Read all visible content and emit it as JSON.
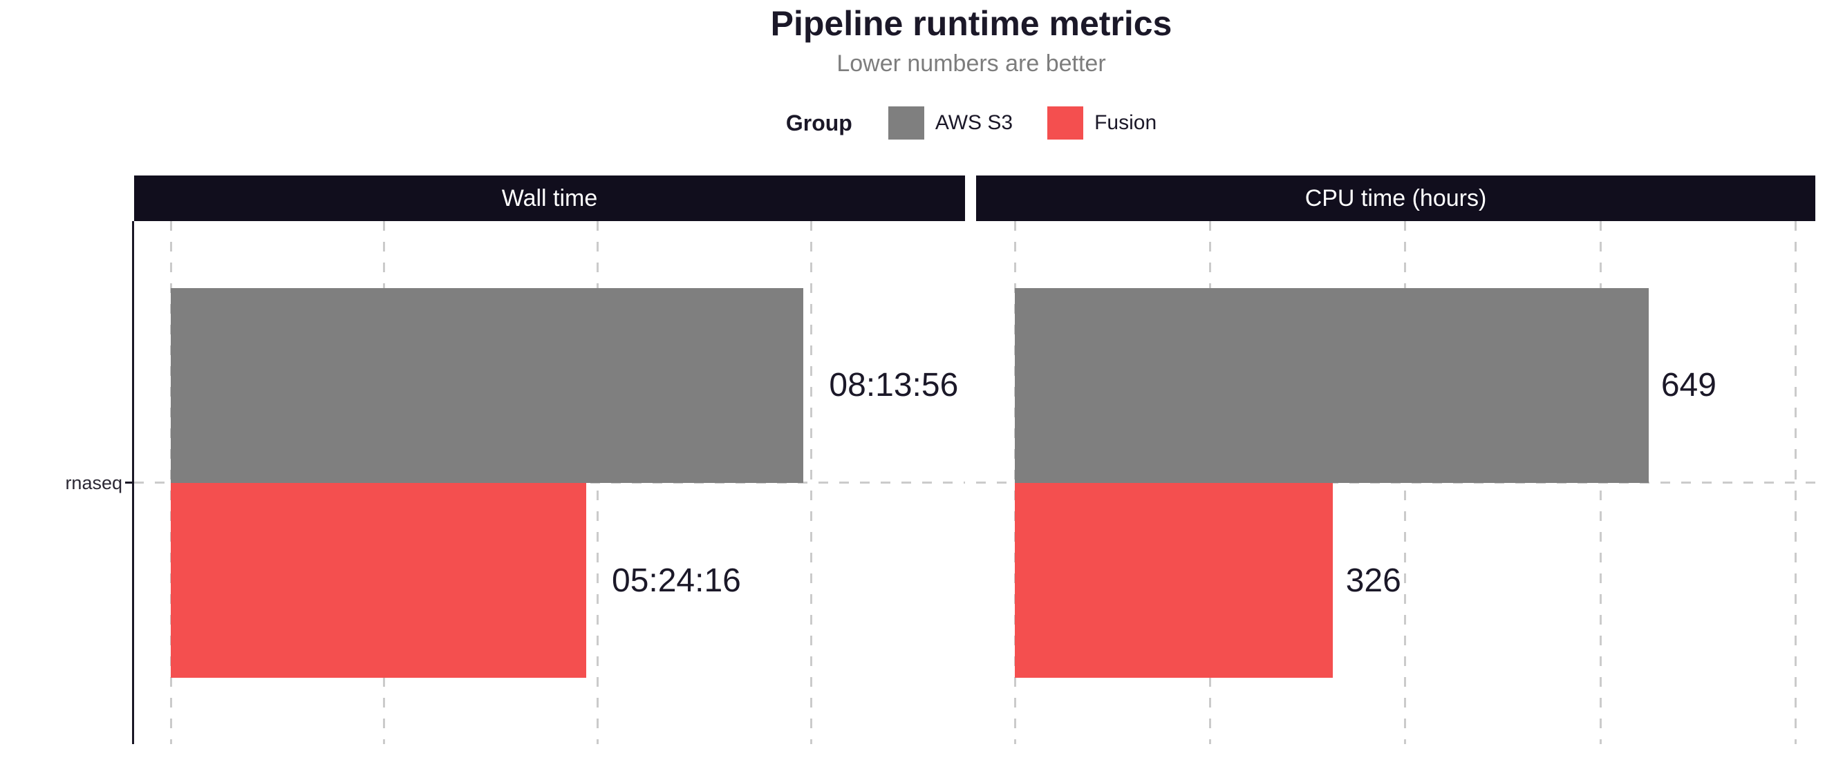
{
  "header": {
    "title": "Pipeline runtime metrics",
    "subtitle": "Lower numbers are better"
  },
  "legend": {
    "title": "Group",
    "items": [
      {
        "label": "AWS S3",
        "color_key": "aws_s3"
      },
      {
        "label": "Fusion",
        "color_key": "fusion"
      }
    ]
  },
  "y_axis": {
    "tick_label": "rnaseq"
  },
  "chart_data": {
    "type": "bar",
    "orientation": "horizontal",
    "title": "Pipeline runtime metrics",
    "subtitle": "Lower numbers are better",
    "legend_title": "Group",
    "legend_position": "top",
    "legend_entries": [
      "AWS S3",
      "Fusion"
    ],
    "categories": [
      "rnaseq"
    ],
    "grid": "dashed",
    "x_tick_labels_visible": false,
    "colors": {
      "aws_s3": "#7F7F7F",
      "fusion": "#F44F4F",
      "strip_background": "#110E1D",
      "grid_line": "#CBCBCB",
      "axis_line": "#1A1725",
      "text_dark": "#1B1828",
      "subtitle_gray": "#7D7D7D"
    },
    "panels": [
      {
        "title": "Wall time",
        "value_unit": "seconds",
        "axis_range": [
          0,
          37200
        ],
        "gridline_values": [
          0,
          10000,
          20000,
          30000
        ],
        "label_nudge": 1200,
        "series": [
          {
            "name": "AWS S3",
            "color_key": "aws_s3",
            "value": 29636,
            "label": "08:13:56"
          },
          {
            "name": "Fusion",
            "color_key": "fusion",
            "value": 19456,
            "label": "05:24:16"
          }
        ]
      },
      {
        "title": "CPU time (hours)",
        "value_unit": "hours",
        "axis_range": [
          0,
          820
        ],
        "gridline_values": [
          0,
          200,
          400,
          600,
          800
        ],
        "label_nudge": 13,
        "series": [
          {
            "name": "AWS S3",
            "color_key": "aws_s3",
            "value": 649,
            "label": "649"
          },
          {
            "name": "Fusion",
            "color_key": "fusion",
            "value": 326,
            "label": "326"
          }
        ]
      }
    ]
  }
}
